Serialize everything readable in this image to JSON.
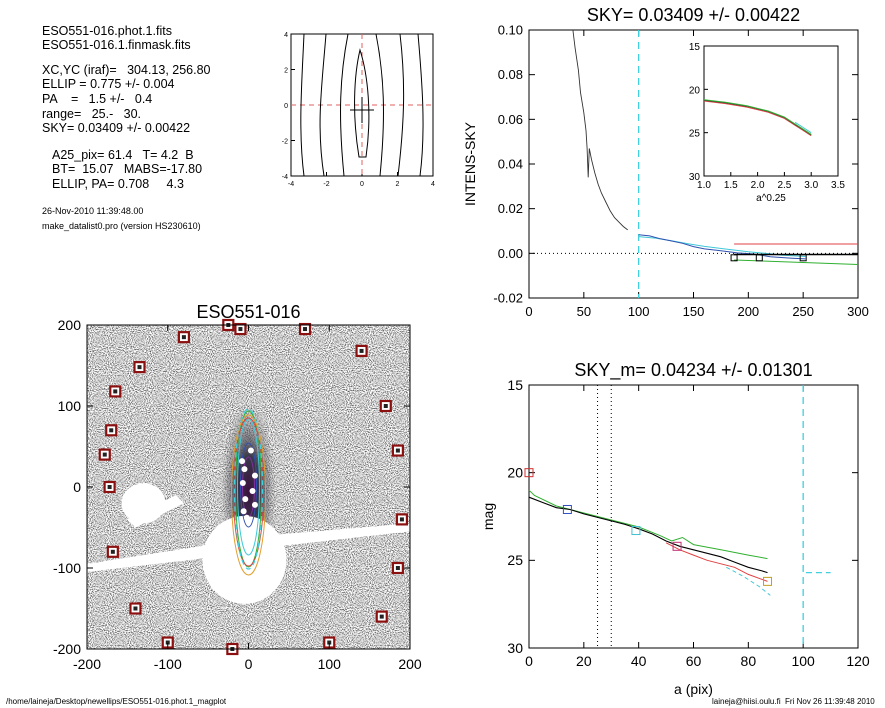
{
  "header": {
    "lines": [
      "ESO551-016.phot.1.fits",
      "ESO551-016.1.finmask.fits"
    ],
    "params": [
      "XC,YC (iraf)=   304.13, 256.80",
      "ELLIP = 0.775 +/- 0.004",
      "PA    =   1.5 +/-   0.4",
      "range=   25.-   30.",
      "SKY= 0.03409 +/- 0.00422"
    ],
    "derived": [
      "A25_pix= 61.4   T= 4.2  B",
      "BT=  15.07   MABS=-17.80",
      "ELLIP, PA= 0.708     4.3"
    ],
    "date": "26-Nov-2010 11:39:48.00",
    "program": "make_datalist0.pro (version HS230610)"
  },
  "footer": {
    "path": "/home/laineja/Desktop/newellips/ESO551-016.phot.1_magplot",
    "user": "laineja@hiisi.oulu.fi  Fri Nov 26 11:39:48 2010"
  },
  "chart_data": [
    {
      "type": "contour",
      "xlim": [
        -4,
        4
      ],
      "ylim": [
        -4,
        4
      ],
      "xticks": [
        "-4",
        "-2",
        "0",
        "2",
        "4"
      ],
      "yticks": [
        "-4",
        "-2",
        "0",
        "2",
        "4"
      ],
      "crosshair": [
        0,
        0
      ]
    },
    {
      "type": "line",
      "title": "SKY= 0.03409 +/- 0.00422",
      "ylabel": "INTENS-SKY",
      "xlim": [
        0,
        300
      ],
      "ylim": [
        -0.02,
        0.1
      ],
      "xticks": [
        "0",
        "50",
        "100",
        "150",
        "200",
        "250",
        "300"
      ],
      "yticks": [
        "-0.02",
        "0.00",
        "0.02",
        "0.04",
        "0.06",
        "0.08",
        "0.10"
      ],
      "vline_x": 100,
      "profile": [
        [
          40,
          0.1
        ],
        [
          42,
          0.092
        ],
        [
          45,
          0.082
        ],
        [
          47,
          0.072
        ],
        [
          50,
          0.063
        ],
        [
          52,
          0.055
        ],
        [
          53,
          0.047
        ],
        [
          54,
          0.034
        ],
        [
          55,
          0.047
        ],
        [
          57,
          0.042
        ],
        [
          60,
          0.036
        ],
        [
          63,
          0.031
        ],
        [
          66,
          0.027
        ],
        [
          70,
          0.023
        ],
        [
          74,
          0.019
        ],
        [
          78,
          0.016
        ],
        [
          82,
          0.014
        ],
        [
          86,
          0.012
        ],
        [
          90,
          0.0105
        ]
      ],
      "outer_blue": [
        [
          100,
          0.0083
        ],
        [
          110,
          0.0078
        ],
        [
          120,
          0.0065
        ],
        [
          130,
          0.0055
        ],
        [
          140,
          0.0045
        ],
        [
          150,
          0.003
        ],
        [
          160,
          0.002
        ],
        [
          175,
          0.0012
        ],
        [
          190,
          0.0002
        ],
        [
          205,
          -0.0003
        ],
        [
          220,
          -0.0015
        ],
        [
          240,
          -0.0022
        ],
        [
          252,
          -0.0025
        ]
      ],
      "outer_cyan": [
        [
          100,
          0.0075
        ],
        [
          115,
          0.0068
        ],
        [
          130,
          0.0056
        ],
        [
          145,
          0.0043
        ],
        [
          160,
          0.0031
        ],
        [
          180,
          0.0019
        ],
        [
          200,
          0.0007
        ],
        [
          215,
          0.0
        ],
        [
          230,
          -0.0008
        ],
        [
          252,
          -0.0014
        ]
      ],
      "red_line": [
        [
          187,
          0.0042
        ],
        [
          300,
          0.0042
        ]
      ],
      "black_line": [
        [
          187,
          -0.0005
        ],
        [
          300,
          -0.0005
        ]
      ],
      "green_line": [
        [
          187,
          -0.003
        ],
        [
          300,
          -0.005
        ]
      ],
      "squares": [
        [
          187,
          -0.002
        ],
        [
          210,
          -0.002
        ],
        [
          250,
          -0.002
        ]
      ],
      "inset": {
        "xlim": [
          1.0,
          3.5
        ],
        "ylim": [
          30,
          15
        ],
        "xlabel": "a^0.25",
        "xticks": [
          "1.0",
          "1.5",
          "2.0",
          "2.5",
          "3.0",
          "3.5"
        ],
        "yticks": [
          "15",
          "20",
          "25",
          "30"
        ],
        "curve": [
          [
            1.0,
            21.2
          ],
          [
            1.4,
            21.5
          ],
          [
            1.8,
            21.9
          ],
          [
            2.2,
            22.5
          ],
          [
            2.5,
            23.2
          ],
          [
            2.7,
            24.0
          ],
          [
            2.85,
            24.6
          ],
          [
            3.0,
            25.2
          ]
        ]
      }
    },
    {
      "type": "image",
      "title": "ESO551-016",
      "xlim": [
        -200,
        200
      ],
      "ylim": [
        -200,
        200
      ],
      "xticks": [
        "-200",
        "-100",
        "0",
        "100",
        "200"
      ],
      "yticks": [
        "-200",
        "-100",
        "0",
        "100",
        "200"
      ],
      "masked_stars": [
        [
          -10,
          195
        ],
        [
          -80,
          185
        ],
        [
          -135,
          148
        ],
        [
          -165,
          118
        ],
        [
          -170,
          70
        ],
        [
          -178,
          40
        ],
        [
          -172,
          0
        ],
        [
          -168,
          -80
        ],
        [
          -140,
          -150
        ],
        [
          -100,
          -192
        ],
        [
          -20,
          -200
        ],
        [
          70,
          195
        ],
        [
          140,
          168
        ],
        [
          170,
          100
        ],
        [
          185,
          45
        ],
        [
          190,
          -40
        ],
        [
          185,
          -100
        ],
        [
          165,
          -160
        ],
        [
          100,
          -192
        ],
        [
          -25,
          200
        ]
      ]
    },
    {
      "type": "line",
      "title": "SKY_m=  0.04234 +/- 0.01301",
      "xlabel": "a (pix)",
      "ylabel": "mag",
      "xlim": [
        0,
        120
      ],
      "ylim": [
        30,
        15
      ],
      "xticks": [
        "0",
        "20",
        "40",
        "60",
        "80",
        "100",
        "120"
      ],
      "yticks": [
        "15",
        "20",
        "25",
        "30"
      ],
      "vlines_dotted": [
        25,
        30
      ],
      "vline_dashed": 100,
      "black": [
        [
          0,
          21.4
        ],
        [
          5,
          21.7
        ],
        [
          10,
          22.0
        ],
        [
          15,
          22.1
        ],
        [
          20,
          22.35
        ],
        [
          25,
          22.55
        ],
        [
          30,
          22.75
        ],
        [
          35,
          22.95
        ],
        [
          40,
          23.2
        ],
        [
          45,
          23.5
        ],
        [
          50,
          23.9
        ],
        [
          55,
          24.2
        ],
        [
          60,
          24.4
        ],
        [
          65,
          24.6
        ],
        [
          70,
          24.8
        ],
        [
          75,
          25.1
        ],
        [
          80,
          25.4
        ],
        [
          85,
          25.6
        ],
        [
          87,
          25.7
        ]
      ],
      "green": [
        [
          0,
          21.0
        ],
        [
          2,
          21.3
        ],
        [
          10,
          21.9
        ],
        [
          20,
          22.3
        ],
        [
          30,
          22.7
        ],
        [
          40,
          23.1
        ],
        [
          48,
          23.6
        ],
        [
          52,
          23.9
        ],
        [
          56,
          23.7
        ],
        [
          60,
          24.1
        ],
        [
          70,
          24.4
        ],
        [
          80,
          24.7
        ],
        [
          87,
          24.9
        ]
      ],
      "red": [
        [
          50,
          24.0
        ],
        [
          55,
          24.4
        ],
        [
          60,
          24.7
        ],
        [
          65,
          25.0
        ],
        [
          70,
          25.2
        ],
        [
          75,
          25.4
        ],
        [
          80,
          25.8
        ],
        [
          87,
          26.2
        ]
      ],
      "cyan": [
        [
          72,
          25.4
        ],
        [
          78,
          25.9
        ],
        [
          84,
          26.5
        ],
        [
          88,
          27.0
        ]
      ],
      "cyan_sky": [
        [
          101,
          25.7
        ],
        [
          110,
          25.7
        ]
      ],
      "squares": [
        {
          "x": 0,
          "y": 20.0,
          "c": "#d03030"
        },
        {
          "x": 14,
          "y": 22.1,
          "c": "#3050c0"
        },
        {
          "x": 39,
          "y": 23.3,
          "c": "#40c0d0"
        },
        {
          "x": 54,
          "y": 24.2,
          "c": "#c03070"
        },
        {
          "x": 87,
          "y": 26.2,
          "c": "#c0a020"
        }
      ]
    }
  ]
}
